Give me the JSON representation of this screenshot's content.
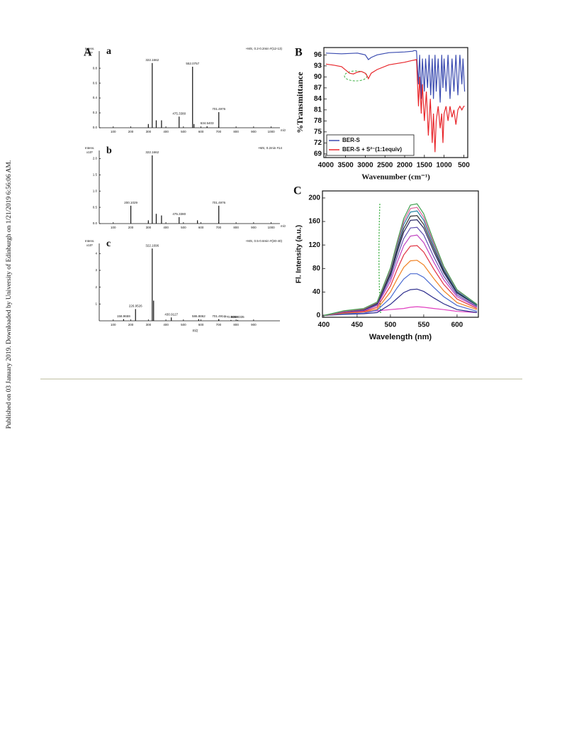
{
  "side_note": "Published on 03 January 2019. Downloaded by University of Edinburgh on 1/21/2019 6:56:06 AM.",
  "figure": {
    "panel_labels": [
      "A",
      "B",
      "C"
    ]
  },
  "chart_data": [
    {
      "type": "stick",
      "label": "a",
      "ylabel": "Intens.",
      "y_multiplier": "x10⁵",
      "subtitle": "+MS, 0.2-0.2min #(12-13)",
      "xlabel": "m/z",
      "x": [
        322.1662,
        552.0757,
        475.338,
        701.4976,
        634.5403,
        300,
        345,
        375,
        560
      ],
      "values": [
        0.87,
        0.82,
        0.15,
        0.21,
        0.02,
        0.05,
        0.1,
        0.1,
        0.05
      ],
      "peak_labels": [
        "322.1662",
        "552.0757",
        "475.3380",
        "701.4976",
        "634.5403",
        null,
        null,
        null,
        null
      ],
      "color": "#111111",
      "xlim": [
        20,
        1050
      ],
      "ylim": [
        0,
        1.03
      ],
      "xticks": [
        100,
        200,
        300,
        400,
        500,
        600,
        700,
        800,
        900,
        1000
      ],
      "yticks": [
        {
          "value": 0,
          "label": "0.0"
        },
        {
          "value": 0.2,
          "label": "0.2"
        },
        {
          "value": 0.4,
          "label": "0.4"
        },
        {
          "value": 0.6,
          "label": "0.6"
        },
        {
          "value": 0.8,
          "label": "0.8"
        }
      ]
    },
    {
      "type": "stick",
      "label": "b",
      "ylabel": "Intens.",
      "y_multiplier": "x10⁵",
      "subtitle": "+MS, 0.2min #14",
      "xlabel": "m/z",
      "x": [
        200.1029,
        322.1662,
        475.338,
        701.4976,
        300,
        345,
        375,
        580
      ],
      "values": [
        0.55,
        2.1,
        0.2,
        0.55,
        0.1,
        0.3,
        0.25,
        0.1
      ],
      "peak_labels": [
        "200.1029",
        "322.1662",
        "475.3380",
        "701.4976",
        null,
        null,
        null,
        null
      ],
      "color": "#111111",
      "xlim": [
        20,
        1050
      ],
      "ylim": [
        0,
        2.25
      ],
      "xticks": [
        100,
        200,
        300,
        400,
        500,
        600,
        700,
        800,
        900,
        1000
      ],
      "yticks": [
        {
          "value": 0,
          "label": "0.0"
        },
        {
          "value": 0.5,
          "label": "0.5"
        },
        {
          "value": 1,
          "label": "1.0"
        },
        {
          "value": 1.5,
          "label": "1.5"
        },
        {
          "value": 2,
          "label": "2.0"
        }
      ]
    },
    {
      "type": "stick",
      "label": "c",
      "ylabel": "Intens.",
      "y_multiplier": "x10⁵",
      "subtitle": "+MS, 0.5-0.6min #(30-40)",
      "xlabel": "m/z",
      "x": [
        158.9659,
        226.9526,
        322.1696,
        430.9127,
        586.8862,
        701.4914,
        770.8469,
        808.8335,
        330
      ],
      "values": [
        0.1,
        0.7,
        4.3,
        0.2,
        0.1,
        0.1,
        0.05,
        0.05,
        1.2
      ],
      "peak_labels": [
        "158.9659",
        "226.9526",
        "322.1696",
        "430.9127",
        "586.8862",
        "701.4914",
        "770.8469",
        "808.8335",
        null
      ],
      "color": "#111111",
      "xlim": [
        20,
        1050
      ],
      "ylim": [
        0,
        4.6
      ],
      "xticks": [
        100,
        200,
        300,
        400,
        500,
        600,
        700,
        800,
        900
      ],
      "yticks": [
        1,
        2,
        3,
        4
      ]
    },
    {
      "type": "line",
      "ylabel": "%Transmittance",
      "xlabel": "Wavenumber (cm⁻¹)",
      "legend": "bottom-left",
      "x_series": true,
      "series": [
        {
          "name": "BER-S",
          "color": "#3a4bb0",
          "x": [
            4000,
            3600,
            3400,
            3200,
            3000,
            2950,
            2920,
            2850,
            2700,
            2400,
            2000,
            1800,
            1750,
            1700,
            1650,
            1620,
            1580,
            1550,
            1500,
            1470,
            1420,
            1380,
            1340,
            1300,
            1270,
            1230,
            1200,
            1150,
            1100,
            1060,
            1030,
            1000,
            950,
            900,
            850,
            800,
            750,
            700,
            650,
            600,
            550,
            520,
            480
          ],
          "values": [
            96.5,
            96.3,
            96.4,
            96.5,
            96,
            95.2,
            94.7,
            95.3,
            96,
            96.6,
            96.8,
            97,
            97.2,
            97.1,
            88,
            96,
            84,
            95,
            86,
            95,
            87,
            96,
            85,
            95,
            84,
            96,
            86,
            95,
            83,
            96,
            87,
            95,
            86,
            96,
            84,
            95,
            86,
            96,
            85,
            96,
            88,
            95,
            86
          ]
        },
        {
          "name": "BER-S + S²⁻(1:1equiv)",
          "color": "#e8262b",
          "x": [
            4000,
            3800,
            3600,
            3400,
            3300,
            3200,
            3100,
            3000,
            2950,
            2920,
            2850,
            2700,
            2400,
            2000,
            1800,
            1700,
            1650,
            1620,
            1580,
            1550,
            1500,
            1450,
            1400,
            1350,
            1300,
            1270,
            1230,
            1200,
            1150,
            1100,
            1060,
            1030,
            1000,
            950,
            900,
            850,
            800,
            750,
            700,
            650,
            600,
            550,
            500,
            480
          ],
          "values": [
            93.5,
            93.2,
            92.8,
            91,
            90.8,
            91.3,
            91.5,
            91,
            90.2,
            89.5,
            91,
            92,
            93.3,
            94,
            94.5,
            94.7,
            82,
            90,
            80,
            88,
            78,
            86,
            74,
            84,
            72,
            80,
            69.5,
            78,
            82,
            76,
            80,
            72,
            80,
            82,
            78,
            82,
            79,
            81,
            77,
            81,
            82,
            81,
            82,
            82
          ]
        }
      ],
      "xlim": [
        4050,
        400
      ],
      "ylim": [
        68,
        98
      ],
      "xticks": [
        4000,
        3500,
        3000,
        2500,
        2000,
        1500,
        1000,
        500
      ],
      "yticks": [
        69,
        72,
        75,
        78,
        81,
        84,
        87,
        90,
        93,
        96
      ]
    },
    {
      "type": "line",
      "ylabel": "Fl. Intensity (a.u.)",
      "xlabel": "Wavelength (nm)",
      "x": [
        400,
        430,
        460,
        480,
        500,
        510,
        520,
        530,
        540,
        550,
        565,
        580,
        600,
        630
      ],
      "series": [
        {
          "color": "#e040c0",
          "values": [
            0,
            3,
            6,
            8,
            10,
            11,
            12,
            14,
            15,
            14,
            12,
            10,
            7,
            5
          ]
        },
        {
          "color": "#2b2b8c",
          "values": [
            0,
            2,
            3,
            5,
            19,
            29,
            39,
            44,
            45,
            41,
            30,
            20,
            10,
            5
          ]
        },
        {
          "color": "#4a6ad0",
          "values": [
            0,
            3,
            4,
            9,
            30,
            47,
            62,
            71,
            71,
            65,
            48,
            32,
            17,
            7
          ]
        },
        {
          "color": "#f08020",
          "values": [
            0,
            4,
            6,
            11,
            40,
            62,
            82,
            93,
            94,
            86,
            63,
            42,
            22,
            10
          ]
        },
        {
          "color": "#e03040",
          "values": [
            0,
            5,
            7,
            14,
            50,
            78,
            103,
            118,
            119,
            108,
            79,
            53,
            28,
            12
          ]
        },
        {
          "color": "#c040c0",
          "values": [
            0,
            6,
            8,
            17,
            58,
            90,
            119,
            135,
            137,
            124,
            91,
            61,
            32,
            14
          ]
        },
        {
          "color": "#6050b0",
          "values": [
            0,
            6,
            9,
            18,
            64,
            99,
            131,
            149,
            150,
            137,
            100,
            67,
            35,
            15
          ]
        },
        {
          "color": "#202060",
          "values": [
            0,
            7,
            10,
            20,
            69,
            107,
            142,
            162,
            163,
            149,
            109,
            73,
            38,
            17
          ]
        },
        {
          "color": "#303030",
          "values": [
            0,
            7,
            10,
            21,
            72,
            112,
            148,
            169,
            170,
            155,
            114,
            76,
            40,
            17
          ]
        },
        {
          "color": "#2080a0",
          "values": [
            0,
            7,
            11,
            22,
            76,
            117,
            155,
            176,
            178,
            162,
            119,
            79,
            41,
            18
          ]
        },
        {
          "color": "#e0609a",
          "values": [
            0,
            7,
            11,
            22,
            78,
            121,
            160,
            182,
            184,
            167,
            123,
            82,
            43,
            19
          ]
        },
        {
          "color": "#40a050",
          "values": [
            0,
            8,
            12,
            23,
            81,
            125,
            165,
            188,
            190,
            173,
            127,
            84,
            44,
            19
          ]
        }
      ],
      "xlim": [
        398,
        632
      ],
      "ylim": [
        -3,
        212
      ],
      "xticks": [
        400,
        450,
        500,
        550,
        600
      ],
      "yticks": [
        0,
        40,
        80,
        120,
        160,
        200
      ]
    }
  ]
}
